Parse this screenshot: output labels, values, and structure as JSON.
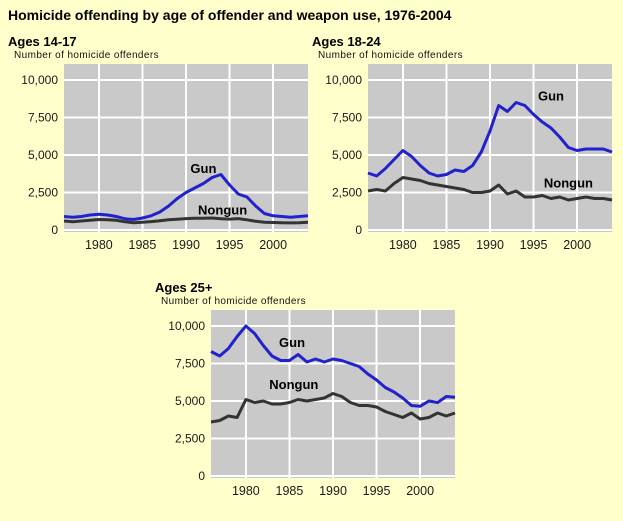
{
  "title": "Homicide offending by age of offender and weapon use, 1976-2004",
  "colors": {
    "background": "#FFFFCC",
    "plot_bg": "#C9C9C9",
    "grid": "#FFFFFF",
    "gun": "#2222CC",
    "nongun": "#333333",
    "text": "#000000",
    "tick_text": "#1A1A1A"
  },
  "chart_data": [
    {
      "type": "line",
      "title": "Ages 14-17",
      "ylabel": "Number of homicide offenders",
      "x_start": 1976,
      "x_end": 2004,
      "x_ticks": [
        1980,
        1985,
        1990,
        1995,
        2000
      ],
      "y_ticks": [
        0,
        2500,
        5000,
        7500,
        10000
      ],
      "y_tick_labels": [
        "0",
        "2,500",
        "5,000",
        "7,500",
        "10,000"
      ],
      "ylim": [
        0,
        10000
      ],
      "grid": true,
      "legend_position": "inline-labels",
      "series": [
        {
          "name": "Nongun",
          "color_key": "nongun",
          "values": [
            600,
            550,
            600,
            650,
            700,
            680,
            650,
            550,
            480,
            520,
            560,
            620,
            680,
            720,
            760,
            780,
            780,
            800,
            750,
            730,
            760,
            680,
            580,
            520,
            500,
            480,
            470,
            480,
            520
          ],
          "label": {
            "x": 1994.2,
            "y": 1050
          }
        },
        {
          "name": "Gun",
          "color_key": "gun",
          "values": [
            900,
            850,
            900,
            1000,
            1050,
            1000,
            900,
            750,
            700,
            800,
            950,
            1200,
            1600,
            2100,
            2500,
            2800,
            3100,
            3500,
            3700,
            3000,
            2400,
            2200,
            1600,
            1100,
            950,
            900,
            850,
            900,
            950
          ],
          "label": {
            "x": 1992,
            "y": 3800
          }
        }
      ]
    },
    {
      "type": "line",
      "title": "Ages 18-24",
      "ylabel": "Number of homicide offenders",
      "x_start": 1976,
      "x_end": 2004,
      "x_ticks": [
        1980,
        1985,
        1990,
        1995,
        2000
      ],
      "y_ticks": [
        0,
        2500,
        5000,
        7500,
        10000
      ],
      "y_tick_labels": [
        "0",
        "2,500",
        "5,000",
        "7,500",
        "10,000"
      ],
      "ylim": [
        0,
        10000
      ],
      "grid": true,
      "legend_position": "inline-labels",
      "series": [
        {
          "name": "Nongun",
          "color_key": "nongun",
          "values": [
            2600,
            2700,
            2600,
            3100,
            3500,
            3400,
            3300,
            3100,
            3000,
            2900,
            2800,
            2700,
            2500,
            2500,
            2600,
            3000,
            2400,
            2600,
            2200,
            2200,
            2300,
            2100,
            2200,
            2000,
            2100,
            2200,
            2100,
            2100,
            2000
          ],
          "label": {
            "x": 1999,
            "y": 2850
          }
        },
        {
          "name": "Gun",
          "color_key": "gun",
          "values": [
            3800,
            3600,
            4100,
            4700,
            5300,
            4900,
            4300,
            3800,
            3600,
            3700,
            4000,
            3900,
            4300,
            5200,
            6600,
            8300,
            7900,
            8500,
            8300,
            7700,
            7200,
            6800,
            6200,
            5500,
            5300,
            5400,
            5400,
            5400,
            5200
          ],
          "label": {
            "x": 1997,
            "y": 8650
          }
        }
      ]
    },
    {
      "type": "line",
      "title": "Ages 25+",
      "ylabel": "Number of homicide offenders",
      "x_start": 1976,
      "x_end": 2004,
      "x_ticks": [
        1980,
        1985,
        1990,
        1995,
        2000
      ],
      "y_ticks": [
        0,
        2500,
        5000,
        7500,
        10000
      ],
      "y_tick_labels": [
        "0",
        "2,500",
        "5,000",
        "7,500",
        "10,000"
      ],
      "ylim": [
        0,
        10000
      ],
      "grid": true,
      "legend_position": "inline-labels",
      "series": [
        {
          "name": "Nongun",
          "color_key": "nongun",
          "values": [
            3600,
            3700,
            4000,
            3900,
            5100,
            4900,
            5000,
            4800,
            4800,
            4900,
            5100,
            5000,
            5100,
            5200,
            5500,
            5300,
            4900,
            4700,
            4700,
            4600,
            4300,
            4100,
            3900,
            4200,
            3800,
            3900,
            4200,
            4000,
            4200
          ],
          "label": {
            "x": 1985.5,
            "y": 5800
          }
        },
        {
          "name": "Gun",
          "color_key": "gun",
          "values": [
            8300,
            8000,
            8500,
            9300,
            10000,
            9500,
            8700,
            8000,
            7700,
            7700,
            8100,
            7600,
            7800,
            7600,
            7800,
            7700,
            7500,
            7300,
            6800,
            6400,
            5900,
            5600,
            5200,
            4700,
            4650,
            5000,
            4900,
            5300,
            5250
          ],
          "label": {
            "x": 1985.3,
            "y": 8600
          }
        }
      ]
    }
  ]
}
